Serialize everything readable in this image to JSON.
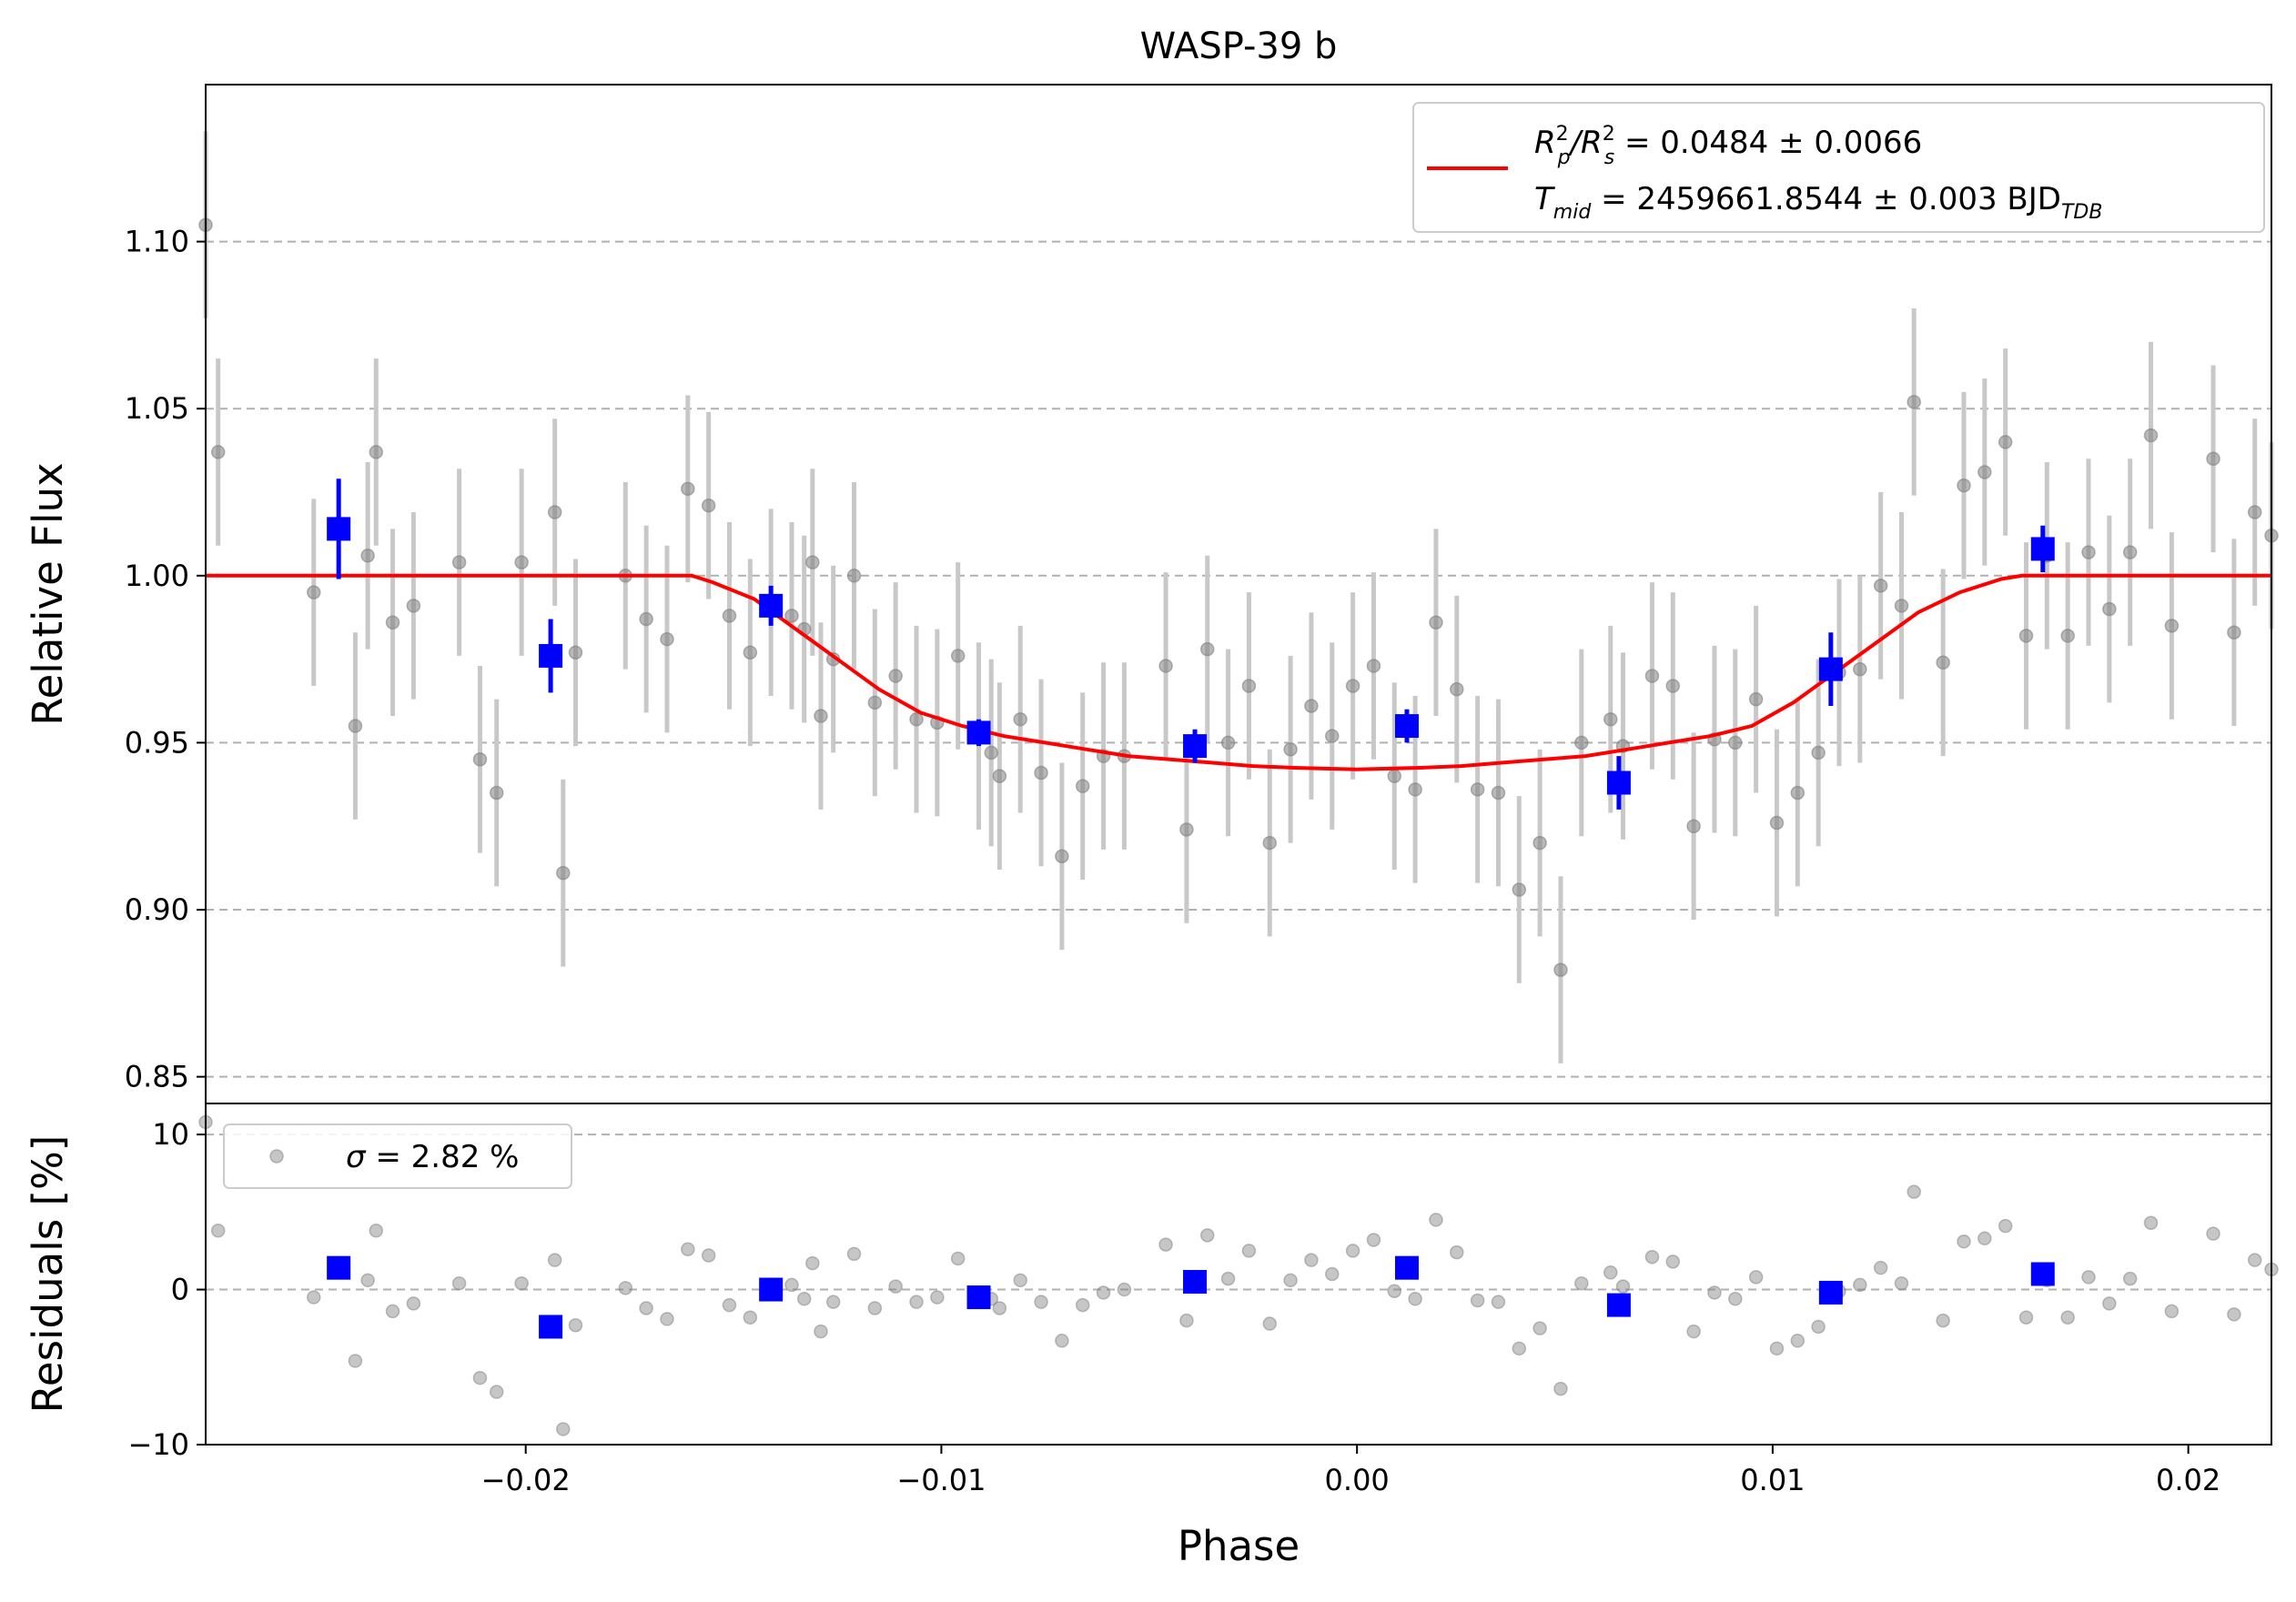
{
  "chart_data": {
    "type": "scatter",
    "title": "WASP-39 b",
    "xlabel": "Phase",
    "xlim": [
      -0.0277,
      0.022
    ],
    "x_ticks": [
      -0.02,
      -0.01,
      0.0,
      0.01,
      0.02
    ],
    "x_tick_labels": [
      "−0.02",
      "−0.01",
      "0.00",
      "0.01",
      "0.02"
    ],
    "colors": {
      "raw": "#808080",
      "raw_err": "#c8c8c8",
      "binned": "#0000ff",
      "model": "#ff0000",
      "grid": "#b0b0b0"
    },
    "top_panel": {
      "ylabel": "Relative Flux",
      "ylim": [
        0.842,
        1.147
      ],
      "y_ticks": [
        0.85,
        0.9,
        0.95,
        1.0,
        1.05,
        1.1
      ],
      "y_tick_labels": [
        "0.85",
        "0.90",
        "0.95",
        "1.00",
        "1.05",
        "1.10"
      ],
      "grid": "horizontal dashed",
      "legend": {
        "position": "top-right",
        "line1_prefix": "R",
        "line1_sub1": "p",
        "line1_sup1": "2",
        "line1_slash": "/R",
        "line1_sub2": "s",
        "line1_sup2": "2",
        "line1_value": " = 0.0484 ± 0.0066",
        "line2_prefix": "T",
        "line2_sub": "mid",
        "line2_value": " = 2459661.8544 ± 0.003 BJD",
        "line2_unit_sub": "TDB"
      },
      "raw_points": [
        [
          -0.0277,
          1.105,
          0.028
        ],
        [
          -0.0274,
          1.037,
          0.028
        ],
        [
          -0.0251,
          0.995,
          0.028
        ],
        [
          -0.0241,
          0.955,
          0.028
        ],
        [
          -0.0238,
          1.006,
          0.028
        ],
        [
          -0.0236,
          1.037,
          0.028
        ],
        [
          -0.0232,
          0.986,
          0.028
        ],
        [
          -0.0227,
          0.991,
          0.028
        ],
        [
          -0.0216,
          1.004,
          0.028
        ],
        [
          -0.0211,
          0.945,
          0.028
        ],
        [
          -0.0207,
          0.935,
          0.028
        ],
        [
          -0.0201,
          1.004,
          0.028
        ],
        [
          -0.0193,
          1.019,
          0.028
        ],
        [
          -0.0191,
          0.911,
          0.028
        ],
        [
          -0.0188,
          0.977,
          0.028
        ],
        [
          -0.0176,
          1.0,
          0.028
        ],
        [
          -0.0171,
          0.987,
          0.028
        ],
        [
          -0.0166,
          0.981,
          0.028
        ],
        [
          -0.0161,
          1.026,
          0.028
        ],
        [
          -0.0156,
          1.021,
          0.028
        ],
        [
          -0.0151,
          0.988,
          0.028
        ],
        [
          -0.0146,
          0.977,
          0.028
        ],
        [
          -0.0141,
          0.992,
          0.028
        ],
        [
          -0.0136,
          0.988,
          0.028
        ],
        [
          -0.0133,
          0.984,
          0.028
        ],
        [
          -0.0131,
          1.004,
          0.028
        ],
        [
          -0.0129,
          0.958,
          0.028
        ],
        [
          -0.0126,
          0.975,
          0.028
        ],
        [
          -0.0121,
          1.0,
          0.028
        ],
        [
          -0.0116,
          0.962,
          0.028
        ],
        [
          -0.0111,
          0.97,
          0.028
        ],
        [
          -0.0106,
          0.957,
          0.028
        ],
        [
          -0.0101,
          0.956,
          0.028
        ],
        [
          -0.0096,
          0.976,
          0.028
        ],
        [
          -0.0091,
          0.952,
          0.028
        ],
        [
          -0.0088,
          0.947,
          0.028
        ],
        [
          -0.0086,
          0.94,
          0.028
        ],
        [
          -0.0081,
          0.957,
          0.028
        ],
        [
          -0.0076,
          0.941,
          0.028
        ],
        [
          -0.0071,
          0.916,
          0.028
        ],
        [
          -0.0066,
          0.937,
          0.028
        ],
        [
          -0.0061,
          0.946,
          0.028
        ],
        [
          -0.0056,
          0.946,
          0.028
        ],
        [
          -0.0046,
          0.973,
          0.028
        ],
        [
          -0.0041,
          0.924,
          0.028
        ],
        [
          -0.0036,
          0.978,
          0.028
        ],
        [
          -0.0031,
          0.95,
          0.028
        ],
        [
          -0.0026,
          0.967,
          0.028
        ],
        [
          -0.0021,
          0.92,
          0.028
        ],
        [
          -0.0016,
          0.948,
          0.028
        ],
        [
          -0.0011,
          0.961,
          0.028
        ],
        [
          -0.0006,
          0.952,
          0.028
        ],
        [
          -0.0001,
          0.967,
          0.028
        ],
        [
          0.0004,
          0.973,
          0.028
        ],
        [
          0.0009,
          0.94,
          0.028
        ],
        [
          0.0014,
          0.936,
          0.028
        ],
        [
          0.0019,
          0.986,
          0.028
        ],
        [
          0.0024,
          0.966,
          0.028
        ],
        [
          0.0029,
          0.936,
          0.028
        ],
        [
          0.0034,
          0.935,
          0.028
        ],
        [
          0.0039,
          0.906,
          0.028
        ],
        [
          0.0044,
          0.92,
          0.028
        ],
        [
          0.0049,
          0.882,
          0.028
        ],
        [
          0.0054,
          0.95,
          0.028
        ],
        [
          0.0061,
          0.957,
          0.028
        ],
        [
          0.0064,
          0.949,
          0.028
        ],
        [
          0.0071,
          0.97,
          0.028
        ],
        [
          0.0076,
          0.967,
          0.028
        ],
        [
          0.0081,
          0.925,
          0.028
        ],
        [
          0.0086,
          0.951,
          0.028
        ],
        [
          0.0091,
          0.95,
          0.028
        ],
        [
          0.0096,
          0.963,
          0.028
        ],
        [
          0.0101,
          0.926,
          0.028
        ],
        [
          0.0106,
          0.935,
          0.028
        ],
        [
          0.0111,
          0.947,
          0.028
        ],
        [
          0.0116,
          0.971,
          0.028
        ],
        [
          0.0121,
          0.972,
          0.028
        ],
        [
          0.0126,
          0.997,
          0.028
        ],
        [
          0.0131,
          0.991,
          0.028
        ],
        [
          0.0134,
          1.052,
          0.028
        ],
        [
          0.0141,
          0.974,
          0.028
        ],
        [
          0.0146,
          1.027,
          0.028
        ],
        [
          0.0151,
          1.031,
          0.028
        ],
        [
          0.0156,
          1.04,
          0.028
        ],
        [
          0.0161,
          0.982,
          0.028
        ],
        [
          0.0166,
          1.006,
          0.028
        ],
        [
          0.0171,
          0.982,
          0.028
        ],
        [
          0.0176,
          1.007,
          0.028
        ],
        [
          0.0181,
          0.99,
          0.028
        ],
        [
          0.0186,
          1.007,
          0.028
        ],
        [
          0.0191,
          1.042,
          0.028
        ],
        [
          0.0196,
          0.985,
          0.028
        ],
        [
          0.0206,
          1.035,
          0.028
        ],
        [
          0.0211,
          0.983,
          0.028
        ],
        [
          0.0216,
          1.019,
          0.028
        ],
        [
          0.0221,
          1.012,
          0.028
        ]
      ],
      "binned_points": [
        [
          -0.0245,
          1.014,
          0.015
        ],
        [
          -0.0194,
          0.976,
          0.011
        ],
        [
          -0.0141,
          0.991,
          0.006
        ],
        [
          -0.0091,
          0.953,
          0.004
        ],
        [
          -0.0039,
          0.949,
          0.005
        ],
        [
          0.0012,
          0.955,
          0.005
        ],
        [
          0.0063,
          0.938,
          0.008
        ],
        [
          0.0114,
          0.972,
          0.011
        ],
        [
          0.0165,
          1.008,
          0.007
        ]
      ],
      "model": {
        "name": "",
        "x": [
          -0.0277,
          -0.0165,
          -0.016,
          -0.0155,
          -0.0145,
          -0.0135,
          -0.0125,
          -0.0115,
          -0.0105,
          -0.0095,
          -0.0085,
          -0.0075,
          -0.0065,
          -0.0055,
          -0.0045,
          -0.0035,
          -0.0025,
          -0.0015,
          0.0,
          0.0015,
          0.0025,
          0.0035,
          0.0045,
          0.0055,
          0.0065,
          0.0075,
          0.0085,
          0.0095,
          0.0105,
          0.0115,
          0.0125,
          0.0135,
          0.0145,
          0.0155,
          0.016,
          0.0165,
          0.022
        ],
        "y": [
          1.0,
          1.0,
          1.0,
          0.998,
          0.993,
          0.984,
          0.975,
          0.966,
          0.959,
          0.955,
          0.952,
          0.95,
          0.948,
          0.946,
          0.945,
          0.944,
          0.943,
          0.9425,
          0.942,
          0.9425,
          0.943,
          0.944,
          0.945,
          0.946,
          0.948,
          0.95,
          0.952,
          0.955,
          0.962,
          0.971,
          0.98,
          0.989,
          0.995,
          0.999,
          1.0,
          1.0,
          1.0
        ]
      }
    },
    "bottom_panel": {
      "ylabel": "Residuals [%]",
      "ylim": [
        -10,
        12
      ],
      "y_ticks": [
        -10,
        0,
        10
      ],
      "y_tick_labels": [
        "−10",
        "0",
        "10"
      ],
      "grid": "horizontal dashed",
      "legend": {
        "position": "top-left",
        "sigma_symbol": "σ",
        "sigma_value": " = 2.82 %"
      },
      "raw_points": [
        [
          -0.0277,
          10.8
        ],
        [
          -0.0274,
          3.8
        ],
        [
          -0.0251,
          -0.5
        ],
        [
          -0.0241,
          -4.6
        ],
        [
          -0.0238,
          0.6
        ],
        [
          -0.0236,
          3.8
        ],
        [
          -0.0232,
          -1.4
        ],
        [
          -0.0227,
          -0.9
        ],
        [
          -0.0216,
          0.4
        ],
        [
          -0.0211,
          -5.7
        ],
        [
          -0.0207,
          -6.6
        ],
        [
          -0.0201,
          0.4
        ],
        [
          -0.0193,
          1.9
        ],
        [
          -0.0191,
          -9.0
        ],
        [
          -0.0188,
          -2.3
        ],
        [
          -0.0176,
          0.1
        ],
        [
          -0.0171,
          -1.2
        ],
        [
          -0.0166,
          -1.9
        ],
        [
          -0.0161,
          2.6
        ],
        [
          -0.0156,
          2.2
        ],
        [
          -0.0151,
          -1.0
        ],
        [
          -0.0146,
          -1.8
        ],
        [
          -0.0141,
          -0.2
        ],
        [
          -0.0136,
          0.3
        ],
        [
          -0.0133,
          -0.6
        ],
        [
          -0.0131,
          1.7
        ],
        [
          -0.0129,
          -2.7
        ],
        [
          -0.0126,
          -0.8
        ],
        [
          -0.0121,
          2.3
        ],
        [
          -0.0116,
          -1.2
        ],
        [
          -0.0111,
          0.2
        ],
        [
          -0.0106,
          -0.8
        ],
        [
          -0.0101,
          -0.5
        ],
        [
          -0.0096,
          2.0
        ],
        [
          -0.0091,
          -0.4
        ],
        [
          -0.0088,
          -0.6
        ],
        [
          -0.0086,
          -1.2
        ],
        [
          -0.0081,
          0.6
        ],
        [
          -0.0076,
          -0.8
        ],
        [
          -0.0071,
          -3.3
        ],
        [
          -0.0066,
          -1.0
        ],
        [
          -0.0061,
          -0.2
        ],
        [
          -0.0056,
          0.0
        ],
        [
          -0.0046,
          2.9
        ],
        [
          -0.0041,
          -2.0
        ],
        [
          -0.0036,
          3.5
        ],
        [
          -0.0031,
          0.7
        ],
        [
          -0.0026,
          2.5
        ],
        [
          -0.0021,
          -2.2
        ],
        [
          -0.0016,
          0.6
        ],
        [
          -0.0011,
          1.9
        ],
        [
          -0.0006,
          1.0
        ],
        [
          -0.0001,
          2.5
        ],
        [
          0.0004,
          3.2
        ],
        [
          0.0009,
          -0.1
        ],
        [
          0.0014,
          -0.6
        ],
        [
          0.0019,
          4.5
        ],
        [
          0.0024,
          2.4
        ],
        [
          0.0029,
          -0.7
        ],
        [
          0.0034,
          -0.8
        ],
        [
          0.0039,
          -3.8
        ],
        [
          0.0044,
          -2.5
        ],
        [
          0.0049,
          -6.4
        ],
        [
          0.0054,
          0.4
        ],
        [
          0.0061,
          1.1
        ],
        [
          0.0064,
          0.2
        ],
        [
          0.0071,
          2.1
        ],
        [
          0.0076,
          1.8
        ],
        [
          0.0081,
          -2.7
        ],
        [
          0.0086,
          -0.2
        ],
        [
          0.0091,
          -0.6
        ],
        [
          0.0096,
          0.8
        ],
        [
          0.0101,
          -3.8
        ],
        [
          0.0106,
          -3.3
        ],
        [
          0.0111,
          -2.4
        ],
        [
          0.0116,
          -0.1
        ],
        [
          0.0121,
          0.3
        ],
        [
          0.0126,
          1.4
        ],
        [
          0.0131,
          0.4
        ],
        [
          0.0134,
          6.3
        ],
        [
          0.0141,
          -2.0
        ],
        [
          0.0146,
          3.1
        ],
        [
          0.0151,
          3.3
        ],
        [
          0.0156,
          4.1
        ],
        [
          0.0161,
          -1.8
        ],
        [
          0.0166,
          0.6
        ],
        [
          0.0171,
          -1.8
        ],
        [
          0.0176,
          0.8
        ],
        [
          0.0181,
          -0.9
        ],
        [
          0.0186,
          0.7
        ],
        [
          0.0191,
          4.3
        ],
        [
          0.0196,
          -1.4
        ],
        [
          0.0206,
          3.6
        ],
        [
          0.0211,
          -1.6
        ],
        [
          0.0216,
          1.9
        ],
        [
          0.0221,
          1.3
        ]
      ],
      "binned_points": [
        [
          -0.0245,
          1.4
        ],
        [
          -0.0194,
          -2.4
        ],
        [
          -0.0141,
          0.0
        ],
        [
          -0.0091,
          -0.5
        ],
        [
          -0.0039,
          0.5
        ],
        [
          0.0012,
          1.4
        ],
        [
          0.0063,
          -1.0
        ],
        [
          0.0114,
          -0.2
        ],
        [
          0.0165,
          1.0
        ]
      ]
    }
  }
}
